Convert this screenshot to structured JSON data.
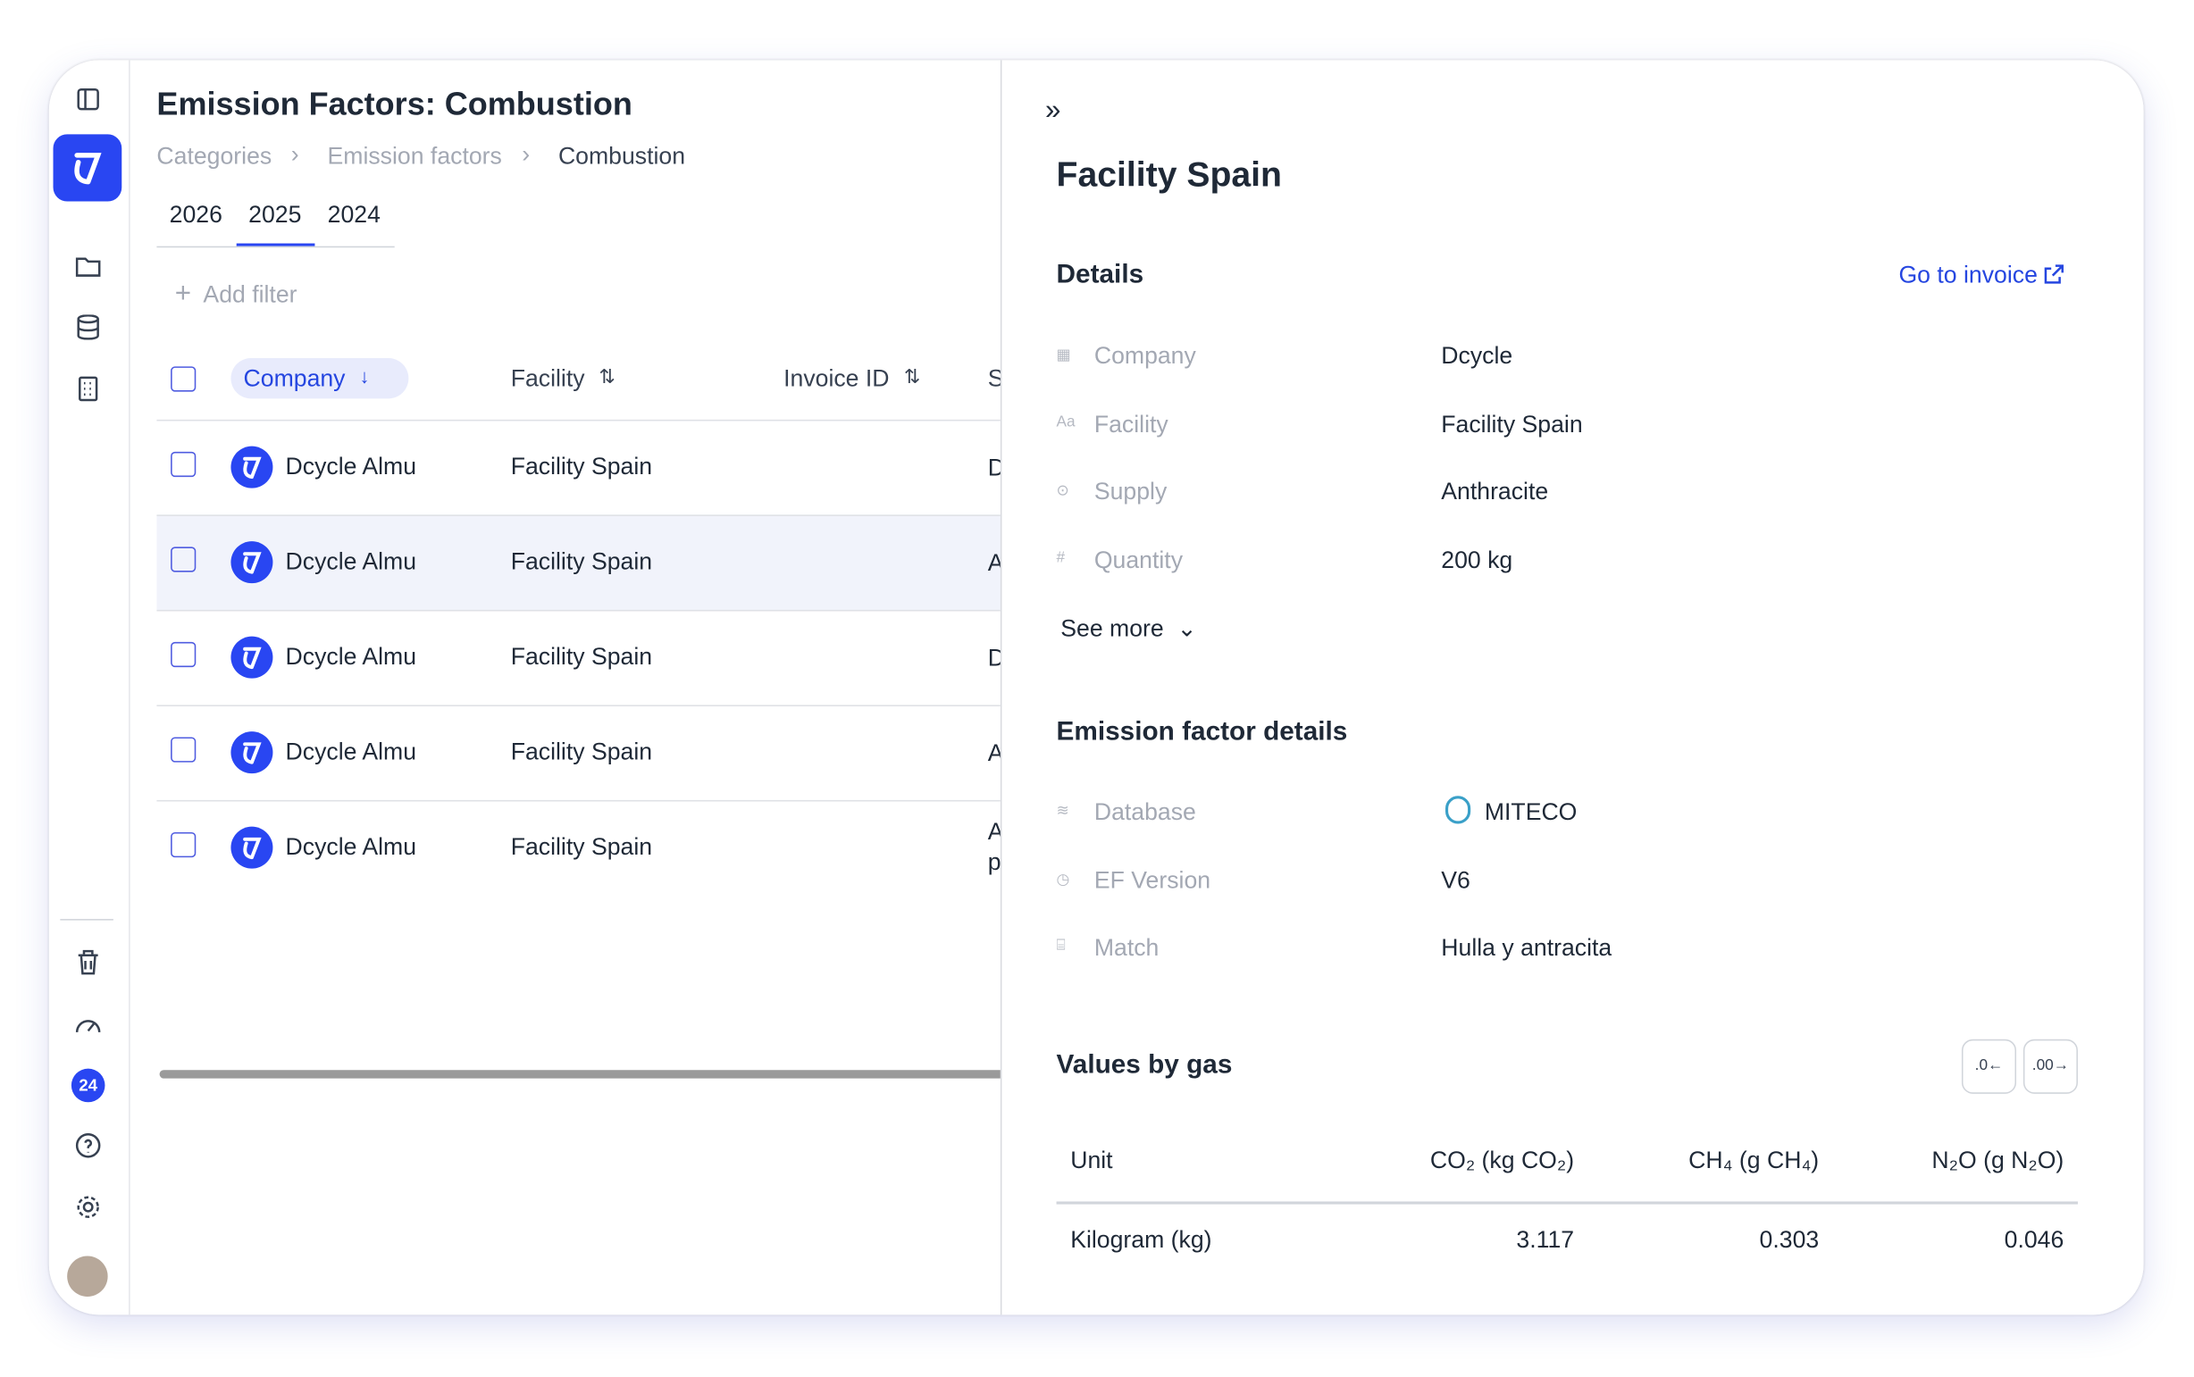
{
  "sidebar": {
    "badge": "24"
  },
  "main": {
    "title": "Emission Factors: Combustion",
    "breadcrumbs": [
      "Categories",
      "Emission factors",
      "Combustion"
    ],
    "tabs": [
      "2026",
      "2025",
      "2024"
    ],
    "add_filter": "Add filter",
    "table": {
      "headers": [
        "Company",
        "Facility",
        "Invoice ID",
        "S"
      ],
      "rows": [
        [
          "Dcycle Almu",
          "Facility Spain",
          "",
          "D"
        ],
        [
          "Dcycle Almu",
          "Facility Spain",
          "",
          "A"
        ],
        [
          "Dcycle Almu",
          "Facility Spain",
          "",
          "D"
        ],
        [
          "Dcycle Almu",
          "Facility Spain",
          "",
          "A"
        ],
        [
          "Dcycle Almu",
          "Facility Spain",
          "",
          "A p"
        ]
      ]
    }
  },
  "panel": {
    "title": "Facility Spain",
    "details": {
      "title": "Details",
      "link": "Go to invoice",
      "fields": [
        {
          "label": "Company",
          "value": "Dcycle"
        },
        {
          "label": "Facility",
          "value": "Facility Spain"
        },
        {
          "label": "Supply",
          "value": "Anthracite"
        },
        {
          "label": "Quantity",
          "value": "200 kg"
        }
      ],
      "see_more": "See more"
    },
    "ef_details": {
      "title": "Emission factor details",
      "fields": [
        {
          "label": "Database",
          "value": "MITECO"
        },
        {
          "label": "EF Version",
          "value": "V6"
        },
        {
          "label": "Match",
          "value": "Hulla y antracita"
        }
      ]
    },
    "gas": {
      "title": "Values by gas",
      "headers": [
        "Unit",
        "CO₂ (kg CO₂)",
        "CH₄ (g CH₄)",
        "N₂O (g N₂O)"
      ],
      "rows": [
        [
          "Kilogram (kg)",
          "3.117",
          "0.303",
          "0.046"
        ]
      ]
    }
  }
}
